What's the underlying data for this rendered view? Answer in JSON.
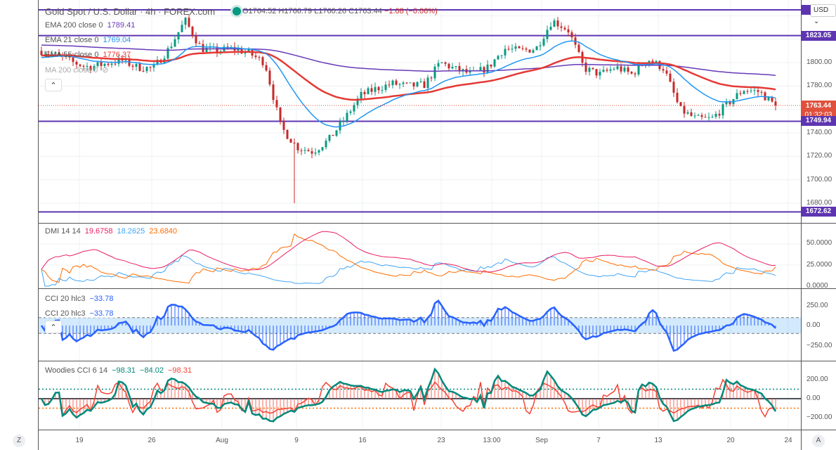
{
  "header": {
    "title": "Gold Spot / U.S. Dollar · 4h · FOREX.com",
    "open": "O1764.52",
    "high": "H1766.79",
    "low": "L1760.26",
    "close": "C1763.44",
    "change": "−1.08 (−0.06%)"
  },
  "legend": [
    {
      "label": "EMA 200 close 0",
      "value": "1789.41",
      "color": "#673ab7"
    },
    {
      "label": "EMA 21 close 0",
      "value": "1769.04",
      "color": "#2196f3"
    },
    {
      "label": "EMA 55 close 0",
      "value": "1776.37",
      "color": "#e53935"
    },
    {
      "label": "MA 200 close 0",
      "value": "",
      "color": "#aaa"
    }
  ],
  "currency": "USD ⌄",
  "price_axis": {
    "ticks": [
      "1800.00",
      "1780.00",
      "1740.00",
      "1720.00",
      "1700.00",
      "1680.00"
    ],
    "levels": [
      "1845.00",
      "1823.05",
      "1749.94",
      "1672.62"
    ],
    "last_price": "1763.44",
    "countdown": "01:32:03"
  },
  "dmi": {
    "label": "DMI 14 14",
    "v1": "19.6758",
    "v2": "18.2625",
    "v3": "23.6840",
    "ticks": [
      "50.0000",
      "25.0000",
      "0.0000"
    ]
  },
  "cci": {
    "label": "CCI 20 hlc3",
    "value": "−33.78",
    "ticks": [
      "250.00",
      "0.00",
      "−250.00"
    ]
  },
  "woodies": {
    "label": "Woodies CCI 6 14",
    "v1": "−98.31",
    "v2": "−84.02",
    "v3": "−98.31",
    "ticks": [
      "200.00",
      "0.00",
      "−200.00"
    ]
  },
  "time_axis": [
    "19",
    "26",
    "Aug",
    "9",
    "16",
    "23",
    "13:00",
    "Sep",
    "7",
    "13",
    "20",
    "24"
  ],
  "buttons": {
    "z": "Z",
    "a": "A",
    "collapse": "⌃"
  },
  "colors": {
    "up": "#089981",
    "down": "#c62828",
    "level": "#5e35b1"
  },
  "chart_data": {
    "type": "candlestick",
    "price_path": [
      1810,
      1806,
      1800,
      1796,
      1799,
      1802,
      1796,
      1795,
      1812,
      1836,
      1812,
      1810,
      1812,
      1808,
      1800,
      1745,
      1728,
      1724,
      1734,
      1752,
      1772,
      1778,
      1782,
      1780,
      1781,
      1800,
      1794,
      1790,
      1796,
      1812,
      1810,
      1812,
      1836,
      1828,
      1795,
      1790,
      1796,
      1790,
      1803,
      1795,
      1760,
      1752,
      1752,
      1765,
      1777,
      1775,
      1763
    ]
  }
}
